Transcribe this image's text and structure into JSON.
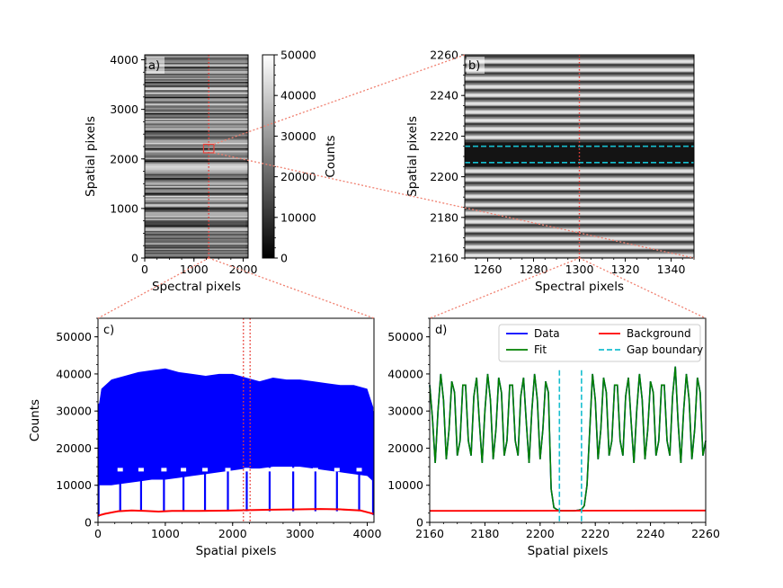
{
  "chart_data": [
    {
      "panel": "a)",
      "type": "heatmap",
      "xlabel": "Spectral pixels",
      "ylabel": "Spatial pixels",
      "xlim": [
        0,
        2100
      ],
      "ylim": [
        0,
        4100
      ],
      "xticks": [
        0,
        1000,
        2000
      ],
      "yticks": [
        0,
        1000,
        2000,
        3000,
        4000
      ],
      "marker_column": 1300,
      "zoom_box": {
        "x": [
          1250,
          1350
        ],
        "y": [
          2160,
          2260
        ]
      },
      "colorbar": {
        "label": "Counts",
        "range": [
          0,
          50000
        ],
        "ticks": [
          0,
          10000,
          20000,
          30000,
          40000,
          50000
        ],
        "colors": [
          "#000000",
          "#ffffff"
        ]
      },
      "gap_rows": [
        300,
        650,
        1000,
        1300,
        1600,
        1950,
        2210,
        2550,
        2900,
        3250,
        3550,
        3850
      ]
    },
    {
      "panel": "b)",
      "type": "heatmap",
      "xlabel": "Spectral pixels",
      "ylabel": "Spatial pixels",
      "xlim": [
        1250,
        1350
      ],
      "ylim": [
        2160,
        2260
      ],
      "xticks": [
        1260,
        1280,
        1300,
        1320,
        1340
      ],
      "yticks": [
        2160,
        2180,
        2200,
        2220,
        2240,
        2260
      ],
      "marker_column": 1300,
      "fiber_period": 4.15,
      "gap_range": [
        2205,
        2217
      ],
      "gap_boundaries": [
        2207,
        2215
      ]
    },
    {
      "panel": "c)",
      "type": "line",
      "xlabel": "Spatial pixels",
      "ylabel": "Counts",
      "xlim": [
        0,
        4100
      ],
      "ylim": [
        0,
        55000
      ],
      "xticks": [
        0,
        1000,
        2000,
        3000,
        4000
      ],
      "yticks": [
        0,
        10000,
        20000,
        30000,
        40000,
        50000
      ],
      "data_envelope": {
        "x": [
          0,
          50,
          200,
          400,
          600,
          800,
          1000,
          1200,
          1400,
          1600,
          1800,
          2000,
          2200,
          2400,
          2600,
          2800,
          3000,
          3200,
          3400,
          3600,
          3800,
          4000,
          4090
        ],
        "upper": [
          30000,
          36000,
          38500,
          39500,
          40500,
          41000,
          41500,
          40500,
          40000,
          39500,
          40000,
          40000,
          39000,
          38000,
          39000,
          38500,
          38500,
          38000,
          37500,
          37000,
          37000,
          36000,
          31000
        ],
        "lower": [
          10000,
          10000,
          10000,
          10500,
          11000,
          11500,
          11500,
          12000,
          12500,
          13000,
          13500,
          14000,
          14500,
          14500,
          15000,
          15000,
          15000,
          14500,
          14000,
          13500,
          13000,
          12500,
          11000
        ]
      },
      "gap_dips_x": [
        330,
        640,
        980,
        1270,
        1590,
        1930,
        2210,
        2550,
        2900,
        3230,
        3550,
        3880
      ],
      "background": {
        "x": [
          0,
          100,
          300,
          500,
          700,
          900,
          1100,
          1500,
          2000,
          2500,
          3000,
          3300,
          3600,
          3900,
          4050,
          4090
        ],
        "y": [
          1800,
          2300,
          3000,
          3200,
          3100,
          2900,
          3100,
          3100,
          3200,
          3400,
          3500,
          3600,
          3500,
          3200,
          2500,
          2300
        ]
      },
      "zoom_markers_x": [
        2160,
        2260
      ]
    },
    {
      "panel": "d)",
      "type": "line",
      "xlabel": "Spatial pixels",
      "ylabel": "",
      "xlim": [
        2160,
        2260
      ],
      "ylim": [
        0,
        55000
      ],
      "xticks": [
        2160,
        2180,
        2200,
        2220,
        2240,
        2260
      ],
      "yticks": [
        0,
        10000,
        20000,
        30000,
        40000,
        50000
      ],
      "legend": [
        "Data",
        "Background",
        "Fit",
        "Gap boundary"
      ],
      "legend_position": "top-right",
      "series": [
        {
          "name": "Data",
          "color": "#0000ff",
          "x": [
            2160,
            2161,
            2162,
            2163,
            2164,
            2165,
            2166,
            2167,
            2168,
            2169,
            2170,
            2171,
            2172,
            2173,
            2174,
            2175,
            2176,
            2177,
            2178,
            2179,
            2180,
            2181,
            2182,
            2183,
            2184,
            2185,
            2186,
            2187,
            2188,
            2189,
            2190,
            2191,
            2192,
            2193,
            2194,
            2195,
            2196,
            2197,
            2198,
            2199,
            2200,
            2201,
            2202,
            2203,
            2204,
            2205,
            2206,
            2207,
            2208,
            2209,
            2210,
            2211,
            2212,
            2213,
            2214,
            2215,
            2216,
            2217,
            2218,
            2219,
            2220,
            2221,
            2222,
            2223,
            2224,
            2225,
            2226,
            2227,
            2228,
            2229,
            2230,
            2231,
            2232,
            2233,
            2234,
            2235,
            2236,
            2237,
            2238,
            2239,
            2240,
            2241,
            2242,
            2243,
            2244,
            2245,
            2246,
            2247,
            2248,
            2249,
            2250,
            2251,
            2252,
            2253,
            2254,
            2255,
            2256,
            2257,
            2258,
            2259,
            2260
          ],
          "y": [
            37000,
            28000,
            16000,
            30000,
            40000,
            33000,
            17000,
            25000,
            38000,
            35000,
            18000,
            22000,
            37000,
            37000,
            22000,
            18000,
            34000,
            39000,
            27000,
            16000,
            30000,
            40000,
            33000,
            17000,
            25000,
            39000,
            35000,
            18000,
            22000,
            37000,
            37000,
            22000,
            18000,
            34000,
            39000,
            27000,
            16000,
            30000,
            40000,
            33000,
            17000,
            25000,
            38000,
            35000,
            9000,
            4000,
            3500,
            3200,
            3100,
            3100,
            3100,
            3100,
            3100,
            3200,
            3300,
            3500,
            4500,
            10000,
            25000,
            40000,
            33000,
            17000,
            25000,
            39000,
            35000,
            18000,
            22000,
            37000,
            37000,
            22000,
            18000,
            34000,
            39000,
            27000,
            16000,
            30000,
            40000,
            33000,
            17000,
            25000,
            38000,
            35000,
            18000,
            22000,
            37000,
            37000,
            22000,
            18000,
            34000,
            42000,
            27000,
            16000,
            30000,
            40000,
            33000,
            17000,
            25000,
            39000,
            35000,
            18000,
            22000
          ]
        },
        {
          "name": "Fit",
          "color": "#008000",
          "same_as": "Data"
        },
        {
          "name": "Background",
          "color": "#ff0000",
          "x": [
            2160,
            2260
          ],
          "y": [
            3100,
            3200
          ]
        },
        {
          "name": "Gap boundary",
          "color": "#17becf",
          "x": [
            2207,
            2215
          ]
        }
      ]
    }
  ]
}
